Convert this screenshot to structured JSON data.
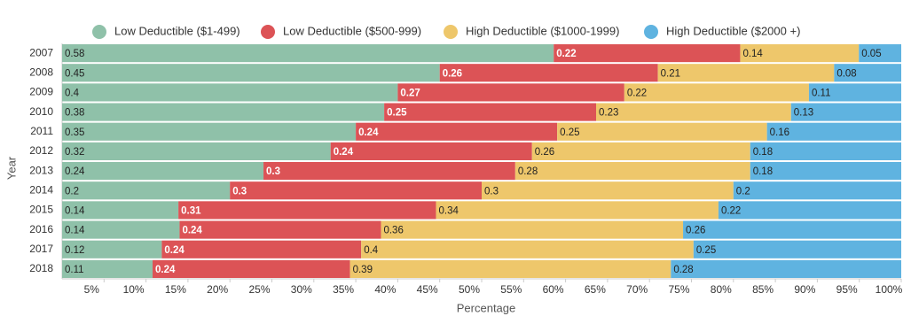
{
  "chart_data": {
    "type": "bar",
    "orientation": "horizontal",
    "stack": "percent",
    "x_label": "Percentage",
    "y_label": "Year",
    "categories": [
      "2007",
      "2008",
      "2009",
      "2010",
      "2011",
      "2012",
      "2013",
      "2014",
      "2015",
      "2016",
      "2017",
      "2018"
    ],
    "series": [
      {
        "name": "Low Deductible ($1-499)",
        "color": "#8fc1a9",
        "values": [
          0.58,
          0.45,
          0.4,
          0.38,
          0.35,
          0.32,
          0.24,
          0.2,
          0.14,
          0.14,
          0.12,
          0.11
        ]
      },
      {
        "name": "Low Deductible ($500-999)",
        "color": "#dc5356",
        "values": [
          0.22,
          0.26,
          0.27,
          0.25,
          0.24,
          0.24,
          0.3,
          0.3,
          0.31,
          0.24,
          0.24,
          0.24
        ]
      },
      {
        "name": "High Deductible ($1000-1999)",
        "color": "#eec76b",
        "values": [
          0.14,
          0.21,
          0.22,
          0.23,
          0.25,
          0.26,
          0.28,
          0.3,
          0.34,
          0.36,
          0.4,
          0.39
        ]
      },
      {
        "name": "High Deductible ($2000 +)",
        "color": "#5fb3e0",
        "values": [
          0.05,
          0.08,
          0.11,
          0.13,
          0.16,
          0.18,
          0.18,
          0.2,
          0.22,
          0.26,
          0.25,
          0.28
        ]
      }
    ],
    "xlim": [
      0,
      1
    ],
    "xticks": [
      {
        "value": 0.05,
        "label": "5%"
      },
      {
        "value": 0.1,
        "label": "10%"
      },
      {
        "value": 0.15,
        "label": "15%"
      },
      {
        "value": 0.2,
        "label": "20%"
      },
      {
        "value": 0.25,
        "label": "25%"
      },
      {
        "value": 0.3,
        "label": "30%"
      },
      {
        "value": 0.35,
        "label": "35%"
      },
      {
        "value": 0.4,
        "label": "40%"
      },
      {
        "value": 0.45,
        "label": "45%"
      },
      {
        "value": 0.5,
        "label": "50%"
      },
      {
        "value": 0.55,
        "label": "55%"
      },
      {
        "value": 0.6,
        "label": "60%"
      },
      {
        "value": 0.65,
        "label": "65%"
      },
      {
        "value": 0.7,
        "label": "70%"
      },
      {
        "value": 0.75,
        "label": "75%"
      },
      {
        "value": 0.8,
        "label": "80%"
      },
      {
        "value": 0.85,
        "label": "85%"
      },
      {
        "value": 0.9,
        "label": "90%"
      },
      {
        "value": 0.95,
        "label": "95%"
      },
      {
        "value": 1,
        "label": "100%"
      }
    ],
    "legend": "top"
  }
}
